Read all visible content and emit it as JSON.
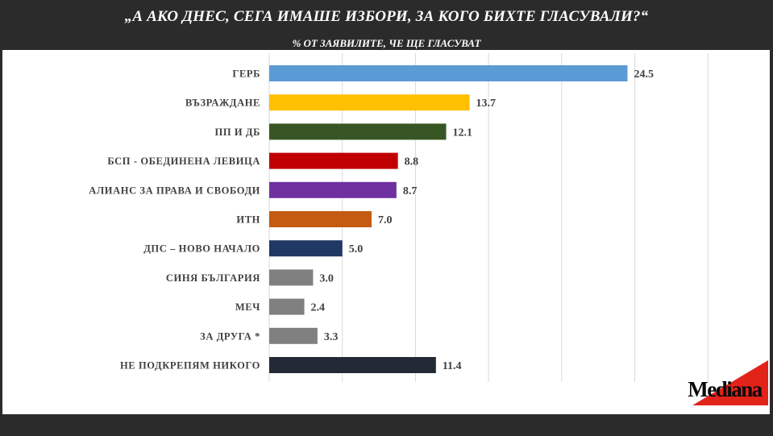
{
  "header": {
    "title": "„А АКО ДНЕС, СЕГА ИМАШЕ ИЗБОРИ, ЗА КОГО БИХТЕ ГЛАСУВАЛИ?“",
    "subtitle": "% ОТ ЗАЯВИЛИТЕ, ЧЕ ЩЕ ГЛАСУВАТ"
  },
  "logo": {
    "text": "Mediana",
    "color": "#e2231a"
  },
  "chart_data": {
    "type": "bar",
    "orientation": "horizontal",
    "categories": [
      "ГЕРБ",
      "ВЪЗРАЖДАНЕ",
      "ПП И ДБ",
      "БСП - ОБЕДИНЕНА ЛЕВИЦА",
      "АЛИАНС ЗА ПРАВА И СВОБОДИ",
      "ИТН",
      "ДПС – НОВО НАЧАЛО",
      "СИНЯ БЪЛГАРИЯ",
      "МЕЧ",
      "ЗА ДРУГА *",
      "НЕ ПОДКРЕПЯМ НИКОГО"
    ],
    "values": [
      24.5,
      13.7,
      12.1,
      8.8,
      8.7,
      7.0,
      5.0,
      3.0,
      2.4,
      3.3,
      11.4
    ],
    "value_labels": [
      "24.5",
      "13.7",
      "12.1",
      "8.8",
      "8.7",
      "7.0",
      "5.0",
      "3.0",
      "2.4",
      "3.3",
      "11.4"
    ],
    "colors": [
      "#5b9bd5",
      "#ffc000",
      "#375623",
      "#c00000",
      "#7030a0",
      "#c55a11",
      "#1f3864",
      "#808080",
      "#808080",
      "#808080",
      "#222a35"
    ],
    "xlim": [
      0,
      35
    ],
    "grid": true,
    "legend": "none"
  }
}
